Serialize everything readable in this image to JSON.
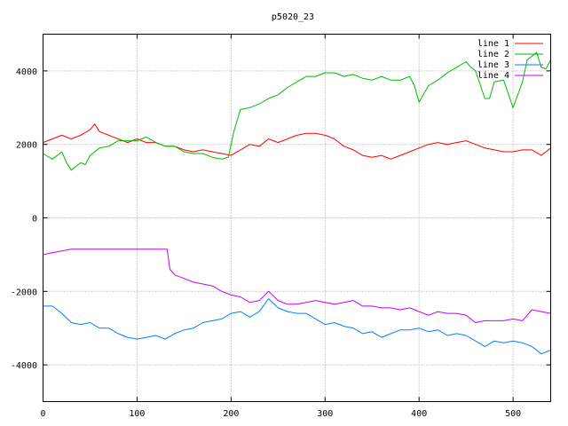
{
  "chart_data": {
    "type": "line",
    "title": "p5020_23",
    "xlabel": "",
    "ylabel": "",
    "xlim": [
      0,
      540
    ],
    "ylim": [
      -5000,
      5000
    ],
    "xticks": [
      0,
      100,
      200,
      300,
      400,
      500
    ],
    "yticks": [
      -4000,
      -2000,
      0,
      2000,
      4000
    ],
    "grid": true,
    "legend_position": "top-right",
    "series": [
      {
        "name": "line 1",
        "color": "#ff0000",
        "x": [
          0,
          10,
          20,
          30,
          40,
          50,
          55,
          60,
          70,
          80,
          90,
          100,
          110,
          120,
          130,
          140,
          150,
          160,
          170,
          180,
          190,
          200,
          210,
          220,
          230,
          240,
          250,
          260,
          270,
          280,
          290,
          300,
          310,
          320,
          330,
          340,
          350,
          360,
          370,
          380,
          390,
          400,
          410,
          420,
          430,
          440,
          450,
          460,
          470,
          480,
          490,
          500,
          510,
          520,
          530,
          540
        ],
        "values": [
          2050,
          2150,
          2250,
          2150,
          2250,
          2400,
          2550,
          2350,
          2250,
          2150,
          2050,
          2150,
          2050,
          2050,
          1950,
          1950,
          1850,
          1800,
          1850,
          1800,
          1750,
          1700,
          1850,
          2000,
          1950,
          2150,
          2050,
          2150,
          2250,
          2300,
          2300,
          2250,
          2150,
          1950,
          1850,
          1700,
          1650,
          1700,
          1600,
          1700,
          1800,
          1900,
          2000,
          2050,
          2000,
          2050,
          2100,
          2000,
          1900,
          1850,
          1800,
          1800,
          1850,
          1850,
          1700,
          1900
        ]
      },
      {
        "name": "line 2",
        "color": "#00bb00",
        "x": [
          0,
          10,
          20,
          25,
          30,
          40,
          45,
          50,
          60,
          70,
          80,
          90,
          100,
          110,
          120,
          130,
          140,
          150,
          160,
          170,
          180,
          190,
          197,
          200,
          203,
          210,
          220,
          230,
          240,
          250,
          260,
          270,
          280,
          290,
          300,
          310,
          320,
          330,
          340,
          350,
          360,
          370,
          380,
          390,
          395,
          400,
          410,
          420,
          430,
          440,
          450,
          455,
          460,
          470,
          475,
          480,
          490,
          500,
          510,
          515,
          520,
          525,
          530,
          535,
          540
        ],
        "values": [
          1750,
          1600,
          1800,
          1500,
          1300,
          1500,
          1450,
          1700,
          1900,
          1950,
          2100,
          2100,
          2100,
          2200,
          2050,
          1950,
          1950,
          1800,
          1750,
          1750,
          1650,
          1600,
          1650,
          2000,
          2350,
          2950,
          3000,
          3100,
          3250,
          3350,
          3550,
          3700,
          3850,
          3850,
          3950,
          3950,
          3850,
          3900,
          3800,
          3750,
          3850,
          3750,
          3750,
          3850,
          3600,
          3150,
          3600,
          3750,
          3950,
          4100,
          4250,
          4100,
          4000,
          3250,
          3250,
          3700,
          3750,
          3000,
          3700,
          4300,
          4400,
          4500,
          4100,
          4050,
          4300
        ]
      },
      {
        "name": "line 3",
        "color": "#0080ff",
        "x": [
          0,
          10,
          20,
          30,
          40,
          50,
          60,
          70,
          80,
          90,
          100,
          110,
          120,
          130,
          140,
          150,
          160,
          170,
          180,
          190,
          200,
          210,
          220,
          230,
          240,
          250,
          260,
          270,
          280,
          290,
          300,
          310,
          320,
          330,
          340,
          350,
          360,
          370,
          380,
          390,
          400,
          410,
          420,
          430,
          440,
          450,
          460,
          470,
          480,
          490,
          500,
          510,
          520,
          530,
          540
        ],
        "values": [
          -2400,
          -2400,
          -2600,
          -2850,
          -2900,
          -2850,
          -3000,
          -3000,
          -3150,
          -3250,
          -3300,
          -3250,
          -3200,
          -3300,
          -3150,
          -3050,
          -3000,
          -2850,
          -2800,
          -2750,
          -2600,
          -2550,
          -2700,
          -2550,
          -2200,
          -2450,
          -2550,
          -2600,
          -2600,
          -2750,
          -2900,
          -2850,
          -2950,
          -3000,
          -3150,
          -3100,
          -3250,
          -3150,
          -3050,
          -3050,
          -3000,
          -3100,
          -3050,
          -3200,
          -3150,
          -3200,
          -3350,
          -3500,
          -3350,
          -3400,
          -3350,
          -3400,
          -3500,
          -3700,
          -3600
        ]
      },
      {
        "name": "line 4",
        "color": "#c000ff",
        "x": [
          0,
          10,
          20,
          30,
          40,
          60,
          80,
          100,
          120,
          132,
          135,
          140,
          150,
          160,
          170,
          180,
          190,
          200,
          210,
          220,
          230,
          240,
          250,
          260,
          270,
          280,
          290,
          300,
          310,
          320,
          330,
          340,
          350,
          360,
          370,
          380,
          390,
          400,
          410,
          420,
          430,
          440,
          450,
          460,
          470,
          480,
          490,
          500,
          510,
          520,
          530,
          540
        ],
        "values": [
          -1000,
          -950,
          -900,
          -850,
          -850,
          -850,
          -850,
          -850,
          -850,
          -850,
          -1400,
          -1550,
          -1650,
          -1750,
          -1800,
          -1850,
          -2000,
          -2100,
          -2150,
          -2300,
          -2250,
          -2000,
          -2250,
          -2350,
          -2350,
          -2300,
          -2250,
          -2300,
          -2350,
          -2300,
          -2250,
          -2400,
          -2400,
          -2450,
          -2450,
          -2500,
          -2450,
          -2550,
          -2650,
          -2550,
          -2600,
          -2600,
          -2650,
          -2850,
          -2800,
          -2800,
          -2800,
          -2750,
          -2800,
          -2500,
          -2550,
          -2600
        ]
      }
    ]
  }
}
